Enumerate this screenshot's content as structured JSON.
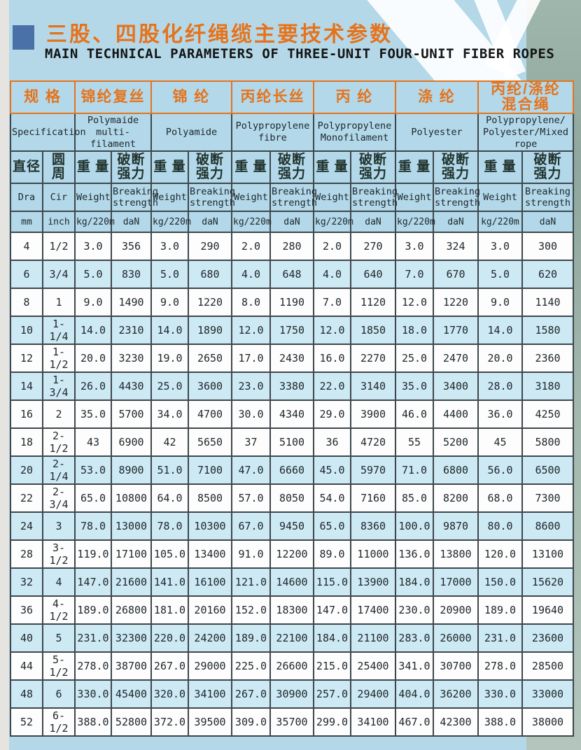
{
  "page": {
    "title_cn": "三股、四股化纤绳缆主要技术参数",
    "title_en": "MAIN TECHNICAL PARAMETERS OF THREE-UNIT FOUR-UNIT FIBER ROPES"
  },
  "colors": {
    "accent_orange": "#e5731c",
    "bullet_blue": "#4a72a8",
    "header_bg": "#b2d8e9",
    "row_blue": "#cde9f4",
    "row_white": "#fdfdfd",
    "border": "#3e474c",
    "page_bg": "#b5d8e8",
    "edge_band": "#9db3a8"
  },
  "table": {
    "spec": {
      "cn": "规 格",
      "en": "Specification"
    },
    "groups": [
      {
        "cn": [
          "锦纶复丝"
        ],
        "en": [
          "Polymaide multi-",
          "filament"
        ]
      },
      {
        "cn": [
          "锦 纶"
        ],
        "en": [
          "Polyamide"
        ]
      },
      {
        "cn": [
          "丙纶长丝"
        ],
        "en": [
          "Polypropylene",
          "fibre"
        ]
      },
      {
        "cn": [
          "丙 纶"
        ],
        "en": [
          "Polypropylene",
          "Monofilament"
        ]
      },
      {
        "cn": [
          "涤 纶"
        ],
        "en": [
          "Polyester"
        ]
      },
      {
        "cn": [
          "丙纶/涤纶",
          "混合绳"
        ],
        "en": [
          "Polypropylene/",
          "Polyester/Mixed",
          "rope"
        ]
      }
    ],
    "sub": {
      "dia_cn": "直径",
      "cir_cn": "圆 周",
      "weight_cn": "重 量",
      "strength_cn1": "破断",
      "strength_cn2": "强力",
      "dia_en": "Dra",
      "cir_en": "Cir",
      "weight_en": "Weight",
      "strength_en1": "Breaking",
      "strength_en2": "strength",
      "dia_unit": "mm",
      "cir_unit": "inch",
      "weight_unit": "kg/220m",
      "strength_unit": "daN"
    },
    "rows": [
      {
        "shade": "white",
        "cells": [
          "4",
          "1/2",
          "3.0",
          "356",
          "3.0",
          "290",
          "2.0",
          "280",
          "2.0",
          "270",
          "3.0",
          "324",
          "3.0",
          "300"
        ]
      },
      {
        "shade": "blue",
        "cells": [
          "6",
          "3/4",
          "5.0",
          "830",
          "5.0",
          "680",
          "4.0",
          "648",
          "4.0",
          "640",
          "7.0",
          "670",
          "5.0",
          "620"
        ]
      },
      {
        "shade": "white",
        "cells": [
          "8",
          "1",
          "9.0",
          "1490",
          "9.0",
          "1220",
          "8.0",
          "1190",
          "7.0",
          "1120",
          "12.0",
          "1220",
          "9.0",
          "1140"
        ]
      },
      {
        "shade": "blue",
        "cells": [
          "10",
          "1-1/4",
          "14.0",
          "2310",
          "14.0",
          "1890",
          "12.0",
          "1750",
          "12.0",
          "1850",
          "18.0",
          "1770",
          "14.0",
          "1580"
        ]
      },
      {
        "shade": "white",
        "cells": [
          "12",
          "1-1/2",
          "20.0",
          "3230",
          "19.0",
          "2650",
          "17.0",
          "2430",
          "16.0",
          "2270",
          "25.0",
          "2470",
          "20.0",
          "2360"
        ]
      },
      {
        "shade": "blue",
        "cells": [
          "14",
          "1-3/4",
          "26.0",
          "4430",
          "25.0",
          "3600",
          "23.0",
          "3380",
          "22.0",
          "3140",
          "35.0",
          "3400",
          "28.0",
          "3180"
        ]
      },
      {
        "shade": "white",
        "cells": [
          "16",
          "2",
          "35.0",
          "5700",
          "34.0",
          "4700",
          "30.0",
          "4340",
          "29.0",
          "3900",
          "46.0",
          "4400",
          "36.0",
          "4250"
        ]
      },
      {
        "shade": "white",
        "cells": [
          "18",
          "2-1/2",
          "43",
          "6900",
          "42",
          "5650",
          "37",
          "5100",
          "36",
          "4720",
          "55",
          "5200",
          "45",
          "5800"
        ]
      },
      {
        "shade": "blue",
        "cells": [
          "20",
          "2-1/4",
          "53.0",
          "8900",
          "51.0",
          "7100",
          "47.0",
          "6660",
          "45.0",
          "5970",
          "71.0",
          "6800",
          "56.0",
          "6500"
        ]
      },
      {
        "shade": "white",
        "cells": [
          "22",
          "2-3/4",
          "65.0",
          "10800",
          "64.0",
          "8500",
          "57.0",
          "8050",
          "54.0",
          "7160",
          "85.0",
          "8200",
          "68.0",
          "7300"
        ]
      },
      {
        "shade": "blue",
        "cells": [
          "24",
          "3",
          "78.0",
          "13000",
          "78.0",
          "10300",
          "67.0",
          "9450",
          "65.0",
          "8360",
          "100.0",
          "9870",
          "80.0",
          "8600"
        ]
      },
      {
        "shade": "white",
        "cells": [
          "28",
          "3-1/2",
          "119.0",
          "17100",
          "105.0",
          "13400",
          "91.0",
          "12200",
          "89.0",
          "11000",
          "136.0",
          "13800",
          "120.0",
          "13100"
        ]
      },
      {
        "shade": "blue",
        "cells": [
          "32",
          "4",
          "147.0",
          "21600",
          "141.0",
          "16100",
          "121.0",
          "14600",
          "115.0",
          "13900",
          "184.0",
          "17000",
          "150.0",
          "15620"
        ]
      },
      {
        "shade": "white",
        "cells": [
          "36",
          "4-1/2",
          "189.0",
          "26800",
          "181.0",
          "20160",
          "152.0",
          "18300",
          "147.0",
          "17400",
          "230.0",
          "20900",
          "189.0",
          "19640"
        ]
      },
      {
        "shade": "blue",
        "cells": [
          "40",
          "5",
          "231.0",
          "32300",
          "220.0",
          "24200",
          "189.0",
          "22100",
          "184.0",
          "21100",
          "283.0",
          "26000",
          "231.0",
          "23600"
        ]
      },
      {
        "shade": "white",
        "cells": [
          "44",
          "5-1/2",
          "278.0",
          "38700",
          "267.0",
          "29000",
          "225.0",
          "26600",
          "215.0",
          "25400",
          "341.0",
          "30700",
          "278.0",
          "28500"
        ]
      },
      {
        "shade": "blue",
        "cells": [
          "48",
          "6",
          "330.0",
          "45400",
          "320.0",
          "34100",
          "267.0",
          "30900",
          "257.0",
          "29400",
          "404.0",
          "36200",
          "330.0",
          "33000"
        ]
      },
      {
        "shade": "white",
        "cells": [
          "52",
          "6-1/2",
          "388.0",
          "52800",
          "372.0",
          "39500",
          "309.0",
          "35700",
          "299.0",
          "34100",
          "467.0",
          "42300",
          "388.0",
          "38000"
        ]
      }
    ]
  }
}
